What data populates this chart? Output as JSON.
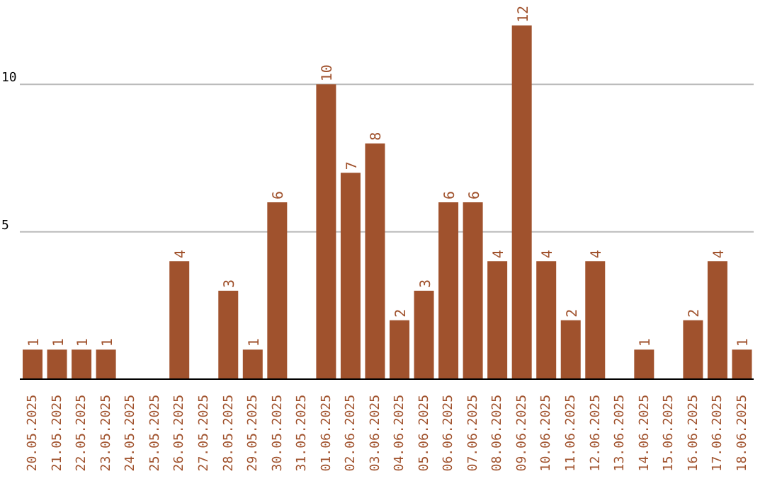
{
  "chart_data": {
    "type": "bar",
    "categories": [
      "20.05.2025",
      "21.05.2025",
      "22.05.2025",
      "23.05.2025",
      "24.05.2025",
      "25.05.2025",
      "26.05.2025",
      "27.05.2025",
      "28.05.2025",
      "29.05.2025",
      "30.05.2025",
      "31.05.2025",
      "01.06.2025",
      "02.06.2025",
      "03.06.2025",
      "04.06.2025",
      "05.06.2025",
      "06.06.2025",
      "07.06.2025",
      "08.06.2025",
      "09.06.2025",
      "10.06.2025",
      "11.06.2025",
      "12.06.2025",
      "13.06.2025",
      "14.06.2025",
      "15.06.2025",
      "16.06.2025",
      "17.06.2025",
      "18.06.2025"
    ],
    "values": [
      1,
      1,
      1,
      1,
      0,
      0,
      4,
      0,
      3,
      1,
      6,
      0,
      10,
      7,
      8,
      2,
      3,
      6,
      6,
      4,
      12,
      4,
      2,
      4,
      0,
      1,
      0,
      2,
      4,
      1
    ],
    "value_labels": [
      "1",
      "1",
      "1",
      "1",
      null,
      null,
      "4",
      null,
      "3",
      "1",
      "6",
      null,
      "10",
      "7",
      "8",
      "2",
      "3",
      "6",
      "6",
      "4",
      "12",
      "4",
      "2",
      "4",
      null,
      "1",
      null,
      "2",
      "4",
      "1"
    ],
    "color": "#a0522d",
    "ylim": [
      0,
      12
    ],
    "yticks": [
      5,
      10
    ],
    "grid": "y",
    "legend": false
  }
}
